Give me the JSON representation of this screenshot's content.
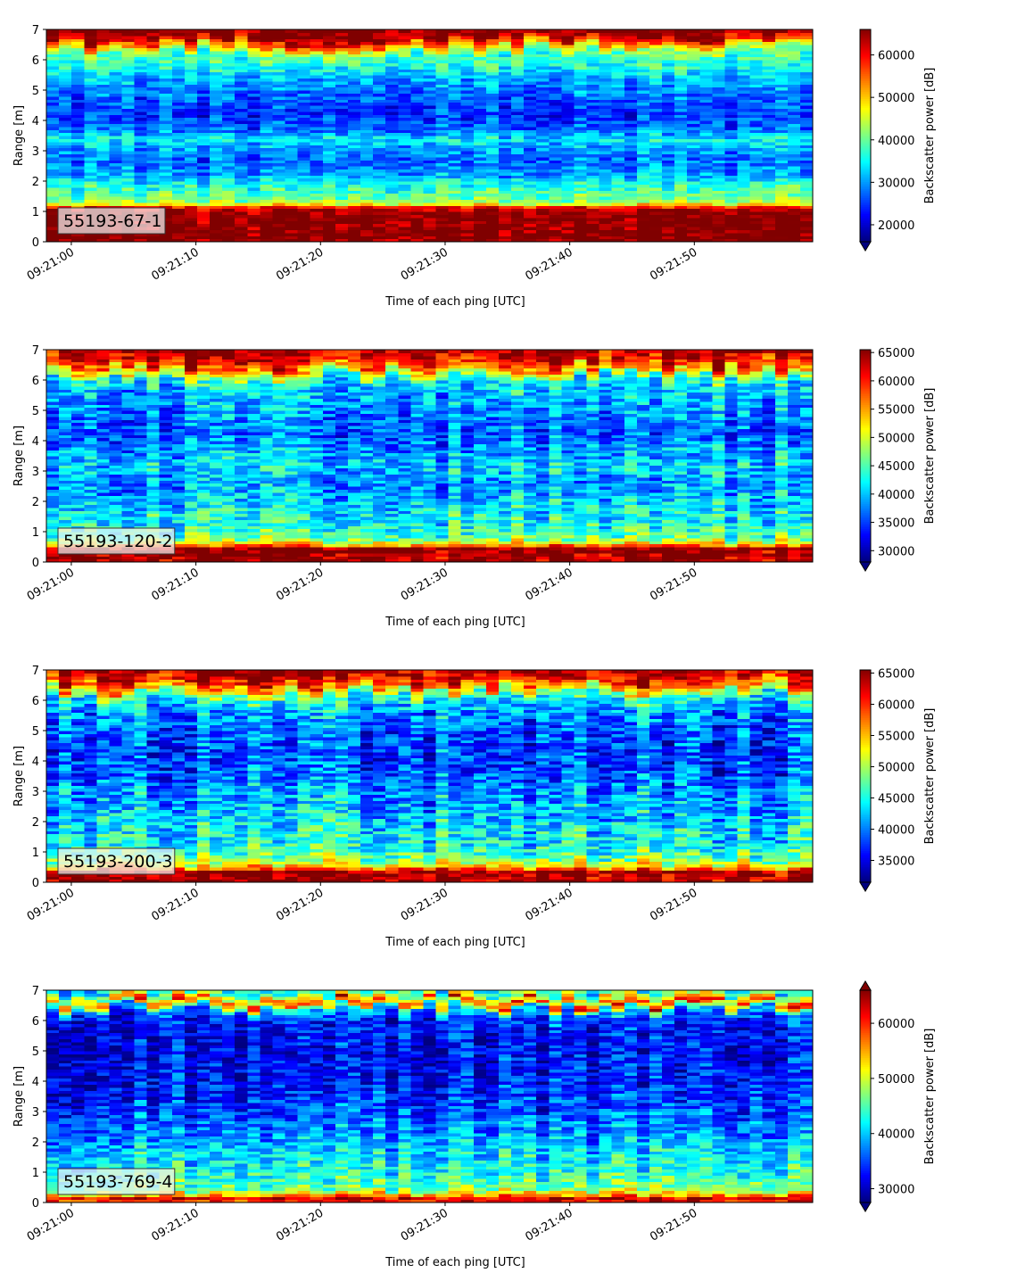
{
  "figure": {
    "xlabel": "Time of each ping [UTC]",
    "ylabel": "Range [m]",
    "colorbar_label": "Backscatter power [dB]",
    "colormap": "jet",
    "colors": {
      "jet_stops": [
        "#00007f",
        "#0000ff",
        "#007fff",
        "#00ffff",
        "#7fff7f",
        "#ffff00",
        "#ff7f00",
        "#ff0000",
        "#7f0000"
      ]
    }
  },
  "chart_data": [
    {
      "type": "heatmap",
      "tag": "55193-67-1",
      "xlabel": "Time of each ping [UTC]",
      "ylabel": "Range [m]",
      "x_ticks": [
        "09:21:00",
        "09:21:10",
        "09:21:20",
        "09:21:30",
        "09:21:40",
        "09:21:50"
      ],
      "xlim_seconds": [
        -2,
        59.5
      ],
      "y_ticks": [
        0,
        1,
        2,
        3,
        4,
        5,
        6,
        7
      ],
      "ylim": [
        0,
        7
      ],
      "colorbar": {
        "label": "Backscatter power [dB]",
        "ticks": [
          20000,
          30000,
          40000,
          50000,
          60000
        ],
        "range": [
          16000,
          66000
        ],
        "extend": "min"
      },
      "profile_m_to_dB": [
        [
          0,
          66000
        ],
        [
          0.2,
          66000
        ],
        [
          1.0,
          66000
        ],
        [
          1.15,
          58000
        ],
        [
          1.3,
          42000
        ],
        [
          1.6,
          38000
        ],
        [
          1.9,
          36000
        ],
        [
          2.2,
          30000
        ],
        [
          2.7,
          27000
        ],
        [
          3.1,
          30000
        ],
        [
          3.4,
          34000
        ],
        [
          3.7,
          27000
        ],
        [
          4.2,
          24000
        ],
        [
          4.8,
          27000
        ],
        [
          5.3,
          30000
        ],
        [
          5.8,
          36000
        ],
        [
          6.2,
          38000
        ],
        [
          6.5,
          50000
        ],
        [
          6.7,
          62000
        ],
        [
          7.0,
          66000
        ]
      ]
    },
    {
      "type": "heatmap",
      "tag": "55193-120-2",
      "xlabel": "Time of each ping [UTC]",
      "ylabel": "Range [m]",
      "x_ticks": [
        "09:21:00",
        "09:21:10",
        "09:21:20",
        "09:21:30",
        "09:21:40",
        "09:21:50"
      ],
      "xlim_seconds": [
        -2,
        59.5
      ],
      "y_ticks": [
        0,
        1,
        2,
        3,
        4,
        5,
        6,
        7
      ],
      "ylim": [
        0,
        7
      ],
      "colorbar": {
        "label": "Backscatter power [dB]",
        "ticks": [
          30000,
          35000,
          40000,
          45000,
          50000,
          55000,
          60000,
          65000
        ],
        "range": [
          28000,
          65500
        ],
        "extend": "min"
      },
      "profile_m_to_dB": [
        [
          0,
          65000
        ],
        [
          0.45,
          65000
        ],
        [
          0.6,
          52000
        ],
        [
          0.8,
          46000
        ],
        [
          1.2,
          43000
        ],
        [
          1.6,
          42000
        ],
        [
          2.0,
          40000
        ],
        [
          2.6,
          38000
        ],
        [
          3.2,
          41000
        ],
        [
          3.6,
          39000
        ],
        [
          4.2,
          36000
        ],
        [
          5.0,
          38000
        ],
        [
          5.6,
          40000
        ],
        [
          6.0,
          42000
        ],
        [
          6.3,
          52000
        ],
        [
          6.6,
          60000
        ],
        [
          7.0,
          65000
        ]
      ]
    },
    {
      "type": "heatmap",
      "tag": "55193-200-3",
      "xlabel": "Time of each ping [UTC]",
      "ylabel": "Range [m]",
      "x_ticks": [
        "09:21:00",
        "09:21:10",
        "09:21:20",
        "09:21:30",
        "09:21:40",
        "09:21:50"
      ],
      "xlim_seconds": [
        -2,
        59.5
      ],
      "y_ticks": [
        0,
        1,
        2,
        3,
        4,
        5,
        6,
        7
      ],
      "ylim": [
        0,
        7
      ],
      "colorbar": {
        "label": "Backscatter power [dB]",
        "ticks": [
          35000,
          40000,
          45000,
          50000,
          55000,
          60000,
          65000
        ],
        "range": [
          31500,
          65500
        ],
        "extend": "min"
      },
      "profile_m_to_dB": [
        [
          0,
          65000
        ],
        [
          0.35,
          65000
        ],
        [
          0.5,
          55000
        ],
        [
          0.8,
          48000
        ],
        [
          1.2,
          45000
        ],
        [
          1.8,
          44000
        ],
        [
          2.4,
          42000
        ],
        [
          3.0,
          41000
        ],
        [
          3.5,
          39000
        ],
        [
          4.2,
          38000
        ],
        [
          5.0,
          39000
        ],
        [
          5.6,
          41000
        ],
        [
          6.1,
          45000
        ],
        [
          6.4,
          55000
        ],
        [
          6.7,
          62000
        ],
        [
          7.0,
          65000
        ]
      ]
    },
    {
      "type": "heatmap",
      "tag": "55193-769-4",
      "xlabel": "Time of each ping [UTC]",
      "ylabel": "Range [m]",
      "x_ticks": [
        "09:21:00",
        "09:21:10",
        "09:21:20",
        "09:21:30",
        "09:21:40",
        "09:21:50"
      ],
      "xlim_seconds": [
        -2,
        59.5
      ],
      "y_ticks": [
        0,
        1,
        2,
        3,
        4,
        5,
        6,
        7
      ],
      "ylim": [
        0,
        7
      ],
      "colorbar": {
        "label": "Backscatter power [dB]",
        "ticks": [
          30000,
          40000,
          50000,
          60000
        ],
        "range": [
          27500,
          66000
        ],
        "extend": "both"
      },
      "profile_m_to_dB": [
        [
          0,
          60000
        ],
        [
          0.15,
          62000
        ],
        [
          0.3,
          52000
        ],
        [
          0.5,
          46000
        ],
        [
          1.0,
          43000
        ],
        [
          1.6,
          41000
        ],
        [
          2.2,
          38000
        ],
        [
          3.0,
          35000
        ],
        [
          4.0,
          33000
        ],
        [
          5.0,
          32000
        ],
        [
          6.0,
          33000
        ],
        [
          6.4,
          40000
        ],
        [
          6.6,
          60000
        ],
        [
          6.8,
          50000
        ],
        [
          7.0,
          42000
        ]
      ]
    }
  ]
}
